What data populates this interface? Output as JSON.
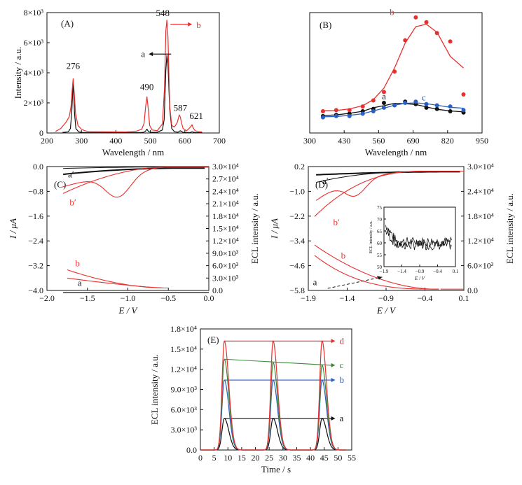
{
  "colors": {
    "red": "#e8302e",
    "black": "#111111",
    "blue": "#2a5fc4",
    "green": "#3a8a3a"
  },
  "chart_data": [
    {
      "panel": "(A)",
      "type": "line",
      "xlabel": "Wavelength / nm",
      "ylabel": "Intensity / a.u.",
      "xlim": [
        200,
        700
      ],
      "ylim": [
        0,
        8000
      ],
      "xticks": [
        "200",
        "300",
        "400",
        "500",
        "600",
        "700"
      ],
      "yticks": [
        "0",
        "2×10³",
        "4×10³",
        "6×10³",
        "8×10³"
      ],
      "peaks": [
        {
          "label": "276",
          "x": 276,
          "y": 3600
        },
        {
          "label": "490",
          "x": 490,
          "y": 2400
        },
        {
          "label": "548",
          "x": 548,
          "y": 7500
        },
        {
          "label": "587",
          "x": 587,
          "y": 1000
        },
        {
          "label": "621",
          "x": 621,
          "y": 550
        }
      ],
      "series": [
        {
          "name": "a",
          "color": "black",
          "x": [
            245,
            262,
            268,
            272,
            276,
            280,
            284,
            292,
            305,
            318,
            400,
            420,
            470,
            480,
            486,
            490,
            494,
            500,
            520,
            535,
            540,
            545,
            548,
            551,
            556,
            562,
            570,
            580,
            587,
            595,
            605,
            615,
            621,
            630,
            640,
            650
          ],
          "y": [
            30,
            80,
            300,
            1400,
            3400,
            1300,
            300,
            70,
            30,
            20,
            20,
            20,
            25,
            40,
            120,
            250,
            110,
            40,
            40,
            200,
            900,
            4200,
            5150,
            4600,
            1600,
            300,
            80,
            50,
            150,
            40,
            30,
            25,
            80,
            25,
            20,
            20
          ]
        },
        {
          "name": "b",
          "color": "red",
          "x": [
            225,
            240,
            255,
            265,
            270,
            273,
            276,
            279,
            283,
            290,
            300,
            310,
            320,
            400,
            430,
            460,
            475,
            482,
            486,
            490,
            494,
            498,
            505,
            520,
            535,
            541,
            545,
            548,
            551,
            556,
            562,
            570,
            578,
            584,
            587,
            590,
            595,
            605,
            612,
            618,
            621,
            624,
            630,
            640,
            650
          ],
          "y": [
            100,
            300,
            700,
            1100,
            1800,
            2800,
            3600,
            2700,
            1300,
            500,
            250,
            150,
            100,
            70,
            80,
            120,
            250,
            650,
            1700,
            2400,
            1600,
            500,
            200,
            150,
            600,
            3000,
            6800,
            7500,
            6400,
            1800,
            500,
            400,
            700,
            1200,
            1050,
            700,
            300,
            150,
            300,
            450,
            550,
            350,
            150,
            90,
            70
          ]
        }
      ],
      "annotations": [
        "a",
        "b"
      ]
    },
    {
      "panel": "(B)",
      "type": "scatter",
      "xlabel": "Wavelength / nm",
      "ylabel": "",
      "xlim": [
        300,
        950
      ],
      "ylim": [
        0,
        1
      ],
      "xticks": [
        "300",
        "430",
        "560",
        "690",
        "820",
        "950"
      ],
      "series": [
        {
          "name": "a",
          "color": "black",
          "x": [
            350,
            400,
            450,
            500,
            540,
            580,
            620,
            660,
            700,
            740,
            780,
            830,
            880
          ],
          "y": [
            0.14,
            0.15,
            0.16,
            0.18,
            0.2,
            0.25,
            0.23,
            0.26,
            0.24,
            0.21,
            0.2,
            0.18,
            0.17
          ]
        },
        {
          "name": "b",
          "color": "red",
          "x": [
            350,
            400,
            450,
            500,
            540,
            580,
            620,
            660,
            700,
            740,
            780,
            830,
            880
          ],
          "y": [
            0.18,
            0.19,
            0.19,
            0.22,
            0.27,
            0.34,
            0.51,
            0.77,
            0.96,
            0.92,
            0.83,
            0.76,
            0.32
          ]
        },
        {
          "name": "c",
          "color": "blue",
          "x": [
            350,
            400,
            450,
            500,
            540,
            580,
            620,
            660,
            700,
            740,
            780,
            830,
            880
          ],
          "y": [
            0.13,
            0.14,
            0.14,
            0.16,
            0.18,
            0.21,
            0.23,
            0.25,
            0.26,
            0.24,
            0.23,
            0.22,
            0.19
          ]
        }
      ]
    },
    {
      "panel": "(C)",
      "type": "line",
      "xlabel": "E / V",
      "ylabel": "I / μA",
      "y2label": "ECL intensity / a.u.",
      "xlim": [
        -2.0,
        0.0
      ],
      "ylim": [
        -4.0,
        0.0
      ],
      "y2lim": [
        0,
        30000
      ],
      "xticks": [
        "−2.0",
        "−1.5",
        "−1.0",
        "−0.5",
        "0.0"
      ],
      "yticks": [
        "−4.0",
        "−3.2",
        "−2.4",
        "−1.6",
        "−0.8",
        "0.0"
      ],
      "y2ticks": [
        "0.0",
        "3.0×10³",
        "6.0×10³",
        "9.0×10³",
        "1.2×10⁴",
        "1.5×10⁴",
        "1.8×10⁴",
        "2.1×10⁴",
        "2.4×10⁴",
        "2.7×10⁴",
        "3.0×10⁴"
      ],
      "labels": [
        "a′",
        "b′",
        "a",
        "b"
      ]
    },
    {
      "panel": "(D)",
      "type": "line",
      "xlabel": "E / V",
      "ylabel": "I / μA",
      "y2label": "ECL intensity / a.u.",
      "xlim": [
        -1.9,
        0.1
      ],
      "ylim": [
        -5.8,
        0.2
      ],
      "y2lim": [
        0,
        30000
      ],
      "xticks": [
        "−1.9",
        "−1.4",
        "−0.9",
        "−0.4",
        "0.1"
      ],
      "yticks": [
        "−5.8",
        "−4.6",
        "−3.4",
        "−2.2",
        "−1.0",
        "0.2"
      ],
      "y2ticks": [
        "0.0",
        "6.0×10³",
        "1.2×10⁴",
        "1.8×10⁴",
        "2.4×10⁴",
        "3.0×10⁴"
      ],
      "labels": [
        "a′",
        "b′",
        "a",
        "b"
      ],
      "inset": {
        "xlabel": "E / V",
        "ylabel": "ECL intensity / a.u.",
        "xlim": [
          -1.9,
          0.1
        ],
        "ylim": [
          50,
          75
        ],
        "xticks": [
          "−1.9",
          "−1.4",
          "−0.9",
          "−0.4",
          "0.1"
        ],
        "yticks": [
          "50",
          "55",
          "60",
          "65",
          "70",
          "75"
        ]
      }
    },
    {
      "panel": "(E)",
      "type": "line",
      "xlabel": "Time / s",
      "ylabel": "ECL intensity / a.u.",
      "xlim": [
        0,
        55
      ],
      "ylim": [
        0,
        18000
      ],
      "xticks": [
        "0",
        "5",
        "10",
        "15",
        "20",
        "25",
        "30",
        "35",
        "40",
        "45",
        "50",
        "55"
      ],
      "yticks": [
        "0.0",
        "3.0×10³",
        "6.0×10³",
        "9.0×10³",
        "1.2×10⁴",
        "1.5×10⁴",
        "1.8×10⁴"
      ],
      "peak_times": [
        8.7,
        26.4,
        44.2
      ],
      "series": [
        {
          "name": "a",
          "color": "black",
          "peak": 4700
        },
        {
          "name": "b",
          "color": "blue",
          "peak": 10400
        },
        {
          "name": "c",
          "color": "green",
          "peaks": [
            13500,
            13000,
            12600
          ]
        },
        {
          "name": "d",
          "color": "red",
          "peak": 16200
        }
      ]
    }
  ]
}
